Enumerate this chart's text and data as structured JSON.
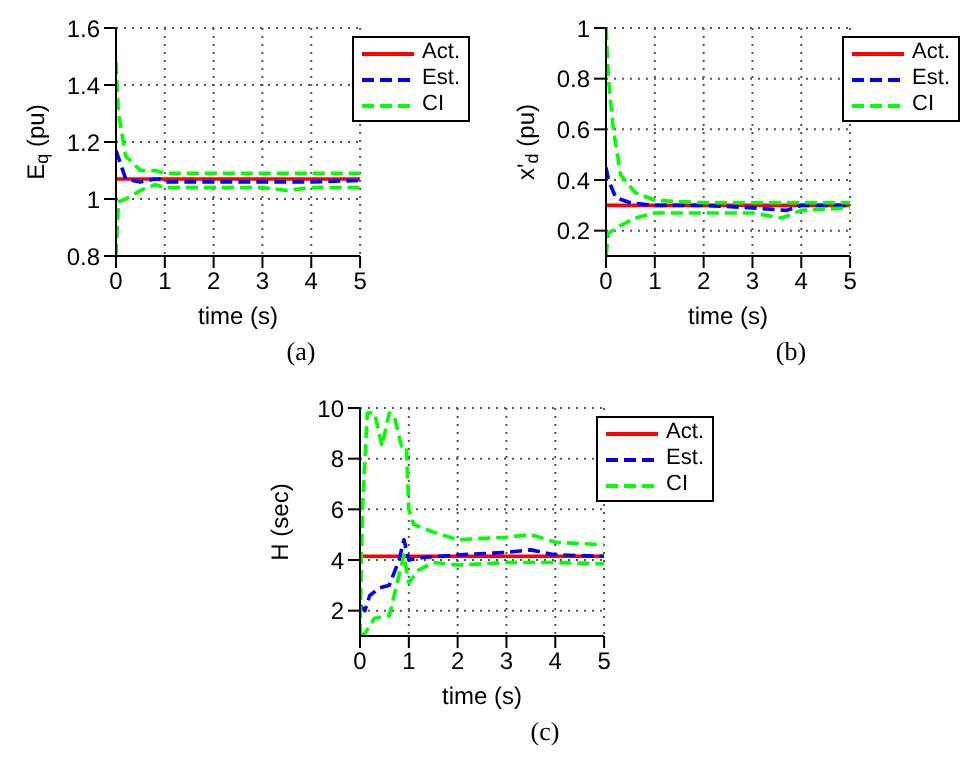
{
  "chart_data": [
    {
      "type": "line",
      "xlabel": "time (s)",
      "ylabel": "E$_{q}$ (pu)",
      "annotations": [
        "(a)"
      ],
      "xlim": [
        0,
        5
      ],
      "xticks": [
        0,
        1,
        2,
        3,
        4,
        5
      ],
      "ylim": [
        0.8,
        1.6
      ],
      "yticks": [
        0.8,
        1,
        1.2,
        1.4,
        1.6
      ],
      "grid": true,
      "legend": "top right",
      "series": [
        {
          "name": "Act.",
          "color": "#ff0000",
          "line_style": "solid",
          "x": [
            0,
            5
          ],
          "values": [
            1.07,
            1.07
          ]
        },
        {
          "name": "Est.",
          "color": "#0000ff",
          "line_style": "dashed",
          "x": [
            0,
            0.1,
            0.2,
            0.5,
            0.8,
            0.9,
            1,
            2,
            3,
            3.5,
            4,
            5
          ],
          "values": [
            1.17,
            1.12,
            1.07,
            1.06,
            1.07,
            1.07,
            1.06,
            1.06,
            1.06,
            1.06,
            1.06,
            1.065
          ]
        },
        {
          "name": "CI",
          "color": "#00ff00",
          "line_style": "dashed",
          "x": [
            0,
            0.05,
            0.2,
            0.5,
            0.8,
            1,
            2,
            3,
            4,
            5
          ],
          "values": [
            1.48,
            1.3,
            1.15,
            1.1,
            1.1,
            1.09,
            1.09,
            1.09,
            1.09,
            1.09
          ]
        },
        {
          "color": "#00ff00",
          "line_style": "dashed",
          "x": [
            0,
            0.05,
            0.2,
            0.5,
            0.8,
            1,
            2,
            3,
            3.5,
            4,
            5
          ],
          "values": [
            0.8,
            0.99,
            1.0,
            1.03,
            1.05,
            1.04,
            1.04,
            1.04,
            1.03,
            1.04,
            1.04
          ]
        }
      ]
    },
    {
      "type": "line",
      "xlabel": "time (s)",
      "ylabel": "x'$_{d}$ (pu)",
      "annotations": [
        "(b)"
      ],
      "xlim": [
        0,
        5
      ],
      "xticks": [
        0,
        1,
        2,
        3,
        4,
        5
      ],
      "ylim": [
        0.1,
        1
      ],
      "yticks": [
        0.2,
        0.4,
        0.6,
        0.8,
        1
      ],
      "grid": true,
      "legend": "top right",
      "series": [
        {
          "name": "Act.",
          "color": "#ff0000",
          "line_style": "solid",
          "x": [
            0,
            5
          ],
          "values": [
            0.3,
            0.3
          ]
        },
        {
          "name": "Est.",
          "color": "#0000ff",
          "line_style": "dashed",
          "x": [
            0,
            0.05,
            0.2,
            0.5,
            1,
            2,
            3,
            3.7,
            4,
            5
          ],
          "values": [
            0.45,
            0.4,
            0.33,
            0.31,
            0.3,
            0.3,
            0.29,
            0.28,
            0.3,
            0.3
          ]
        },
        {
          "name": "CI",
          "color": "#00ff00",
          "line_style": "dashed",
          "x": [
            0,
            0.05,
            0.15,
            0.3,
            0.6,
            1,
            2,
            3,
            4,
            5
          ],
          "values": [
            1,
            0.8,
            0.6,
            0.42,
            0.35,
            0.32,
            0.31,
            0.31,
            0.31,
            0.31
          ]
        },
        {
          "color": "#00ff00",
          "line_style": "dashed",
          "x": [
            0,
            0.05,
            0.3,
            0.6,
            1,
            2,
            3,
            3.6,
            4,
            5
          ],
          "values": [
            0.1,
            0.19,
            0.22,
            0.25,
            0.27,
            0.27,
            0.27,
            0.25,
            0.28,
            0.29
          ]
        }
      ]
    },
    {
      "type": "line",
      "xlabel": "time (s)",
      "ylabel": "H (sec)",
      "annotations": [
        "(c)"
      ],
      "xlim": [
        0,
        5
      ],
      "xticks": [
        0,
        1,
        2,
        3,
        4,
        5
      ],
      "ylim": [
        1,
        10
      ],
      "yticks": [
        2,
        4,
        6,
        8,
        10
      ],
      "grid": true,
      "legend": "top right",
      "series": [
        {
          "name": "Act.",
          "color": "#ff0000",
          "line_style": "solid",
          "x": [
            0,
            5
          ],
          "values": [
            4.15,
            4.15
          ]
        },
        {
          "name": "Est.",
          "color": "#0000ff",
          "line_style": "dashed",
          "x": [
            0,
            0.1,
            0.2,
            0.4,
            0.6,
            0.8,
            0.9,
            1,
            1.3,
            2,
            3,
            3.5,
            4,
            5
          ],
          "values": [
            2.2,
            2.0,
            2.6,
            2.9,
            3.0,
            4.0,
            4.8,
            4.0,
            4.1,
            4.2,
            4.3,
            4.4,
            4.2,
            4.15
          ]
        },
        {
          "name": "CI",
          "color": "#00ff00",
          "line_style": "dashed",
          "x": [
            0,
            0.05,
            0.15,
            0.3,
            0.45,
            0.6,
            0.7,
            0.85,
            0.95,
            1,
            1.1,
            1.5,
            2,
            3,
            3.5,
            4,
            5
          ],
          "values": [
            1,
            6,
            9.8,
            9.8,
            8.5,
            9.8,
            9.7,
            8.5,
            8.5,
            6,
            5.4,
            5.1,
            4.8,
            4.9,
            5.0,
            4.7,
            4.6
          ]
        },
        {
          "color": "#00ff00",
          "line_style": "dashed",
          "x": [
            0,
            0.1,
            0.3,
            0.6,
            0.75,
            0.9,
            1,
            1.2,
            1.5,
            2,
            3,
            4,
            5
          ],
          "values": [
            1.0,
            1.1,
            1.7,
            1.8,
            3.0,
            4.2,
            3.1,
            3.6,
            3.9,
            3.8,
            3.9,
            3.9,
            3.85
          ]
        }
      ]
    }
  ]
}
